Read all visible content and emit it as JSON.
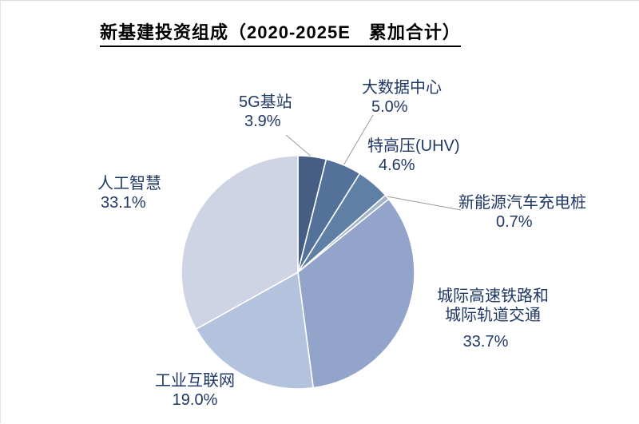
{
  "title": "新基建投资组成（2020-2025E　累加合计）",
  "colors": {
    "label_text": "#203864",
    "leader_line": "#999999",
    "background": "#ffffff"
  },
  "chart_data": {
    "type": "pie",
    "title": "新基建投资组成（2020-2025E 累加合计）",
    "unit": "%",
    "start_angle_deg": -90,
    "direction": "clockwise",
    "legend": "none",
    "slices": [
      {
        "label": "5G基站",
        "value_pct": 3.9,
        "color": "#475E84"
      },
      {
        "label": "大数据中心",
        "value_pct": 5.0,
        "color": "#54719A"
      },
      {
        "label": "特高压(UHV)",
        "value_pct": 4.6,
        "color": "#5F7FA5"
      },
      {
        "label": "新能源汽车充电桩",
        "value_pct": 0.7,
        "color": "#A2B2C8"
      },
      {
        "label": "城际高速铁路和城际轨道交通",
        "value_pct": 33.7,
        "color": "#93A4CB"
      },
      {
        "label": "工业互联网",
        "value_pct": 19.0,
        "color": "#B3C3DE"
      },
      {
        "label": "人工智慧",
        "value_pct": 33.1,
        "color": "#CED4E3"
      }
    ]
  },
  "labels": {
    "g5": {
      "name": "5G基站",
      "pct": "3.9%"
    },
    "bigdata": {
      "name": "大数据中心",
      "pct": "5.0%"
    },
    "uhv": {
      "name": "特高压(UHV)",
      "pct": "4.6%"
    },
    "ev": {
      "name": "新能源汽车充电桩",
      "pct": "0.7%"
    },
    "rail": {
      "name1": "城际高速铁路和",
      "name2": "城际轨道交通",
      "pct": "33.7%"
    },
    "industrial": {
      "name": "工业互联网",
      "pct": "19.0%"
    },
    "ai": {
      "name": "人工智慧",
      "pct": "33.1%"
    }
  }
}
